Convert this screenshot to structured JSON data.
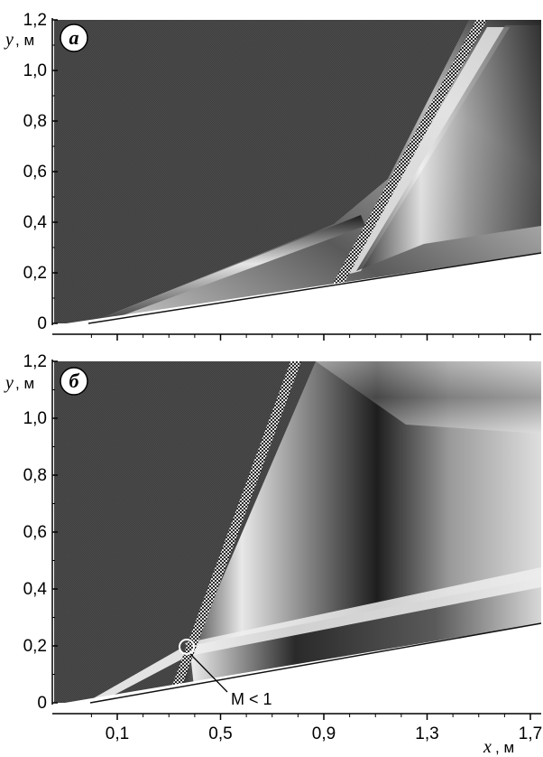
{
  "panels": [
    {
      "badge": "a",
      "y_axis_label": "y",
      "y_axis_unit": ", м",
      "y_ticks": [
        "0",
        "0,2",
        "0,4",
        "0,6",
        "0,8",
        "1,0",
        "1,2"
      ]
    },
    {
      "badge": "б",
      "y_axis_label": "y",
      "y_axis_unit": ", м",
      "y_ticks": [
        "0",
        "0,2",
        "0,4",
        "0,6",
        "0,8",
        "1,0",
        "1,2"
      ],
      "annotation": "M < 1"
    }
  ],
  "x_axis": {
    "ticks": [
      "0,1",
      "0,5",
      "0,9",
      "1,3",
      "1,7"
    ],
    "label": "x",
    "unit": ", м"
  },
  "colors": {
    "background_field": "#4a4a4a",
    "shock_light": "#f2f2f2",
    "shock_dark": "#1a1a1a"
  }
}
